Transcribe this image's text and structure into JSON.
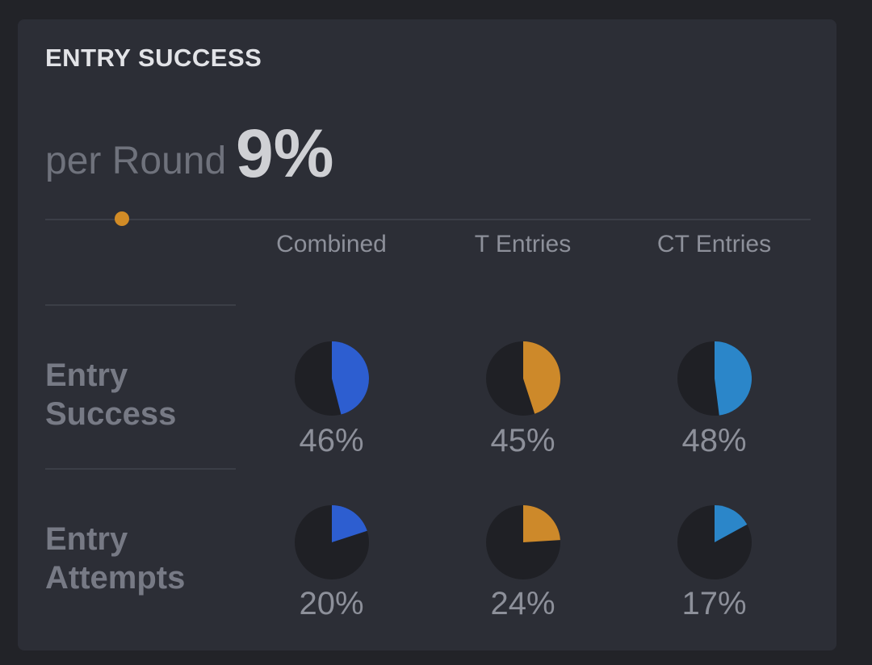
{
  "card": {
    "title": "ENTRY SUCCESS",
    "per_round_label": "per Round",
    "per_round_value": "9%"
  },
  "slider": {
    "level": 0.1
  },
  "colors": {
    "combined": "#2d5ed0",
    "t": "#cd892a",
    "ct": "#2b86c9",
    "pie_background": "#1f2025"
  },
  "chart_data": {
    "type": "pie",
    "columns": [
      "Combined",
      "T Entries",
      "CT Entries"
    ],
    "rows": [
      {
        "label_line1": "Entry",
        "label_line2": "Success",
        "values": [
          46,
          45,
          48
        ]
      },
      {
        "label_line1": "Entry",
        "label_line2": "Attempts",
        "values": [
          20,
          24,
          17
        ]
      }
    ]
  }
}
